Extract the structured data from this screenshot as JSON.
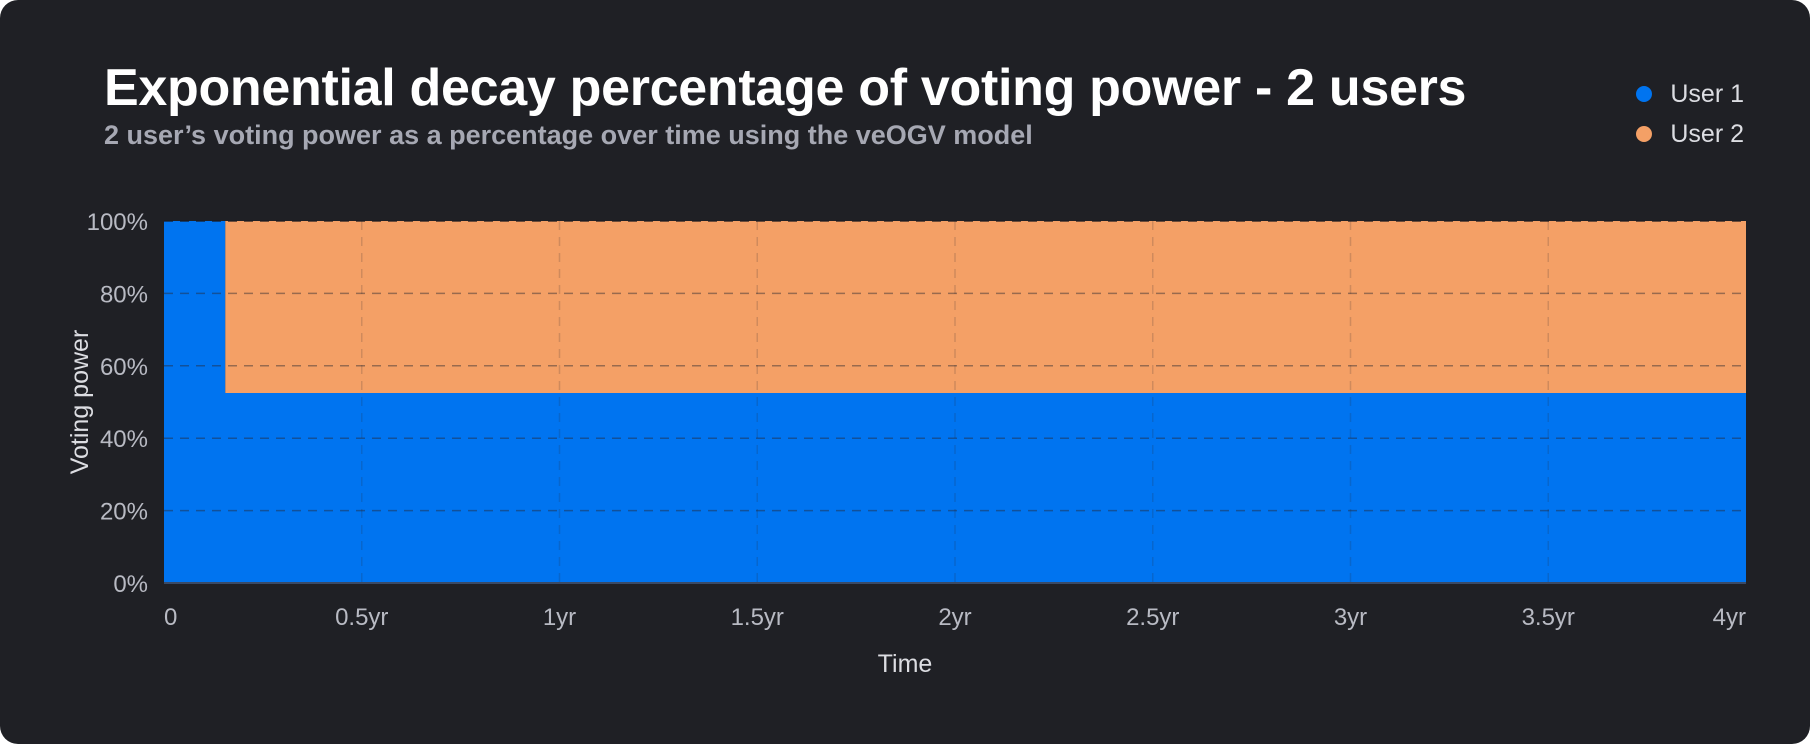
{
  "chart_data": {
    "type": "area",
    "title": "Exponential decay percentage of voting power - 2 users",
    "subtitle": "2 user’s voting power as a percentage over time using the veOGV model",
    "xlabel": "Time",
    "ylabel": "Voting power",
    "x_ticks": [
      {
        "value": 0,
        "label": "0"
      },
      {
        "value": 0.5,
        "label": "0.5yr"
      },
      {
        "value": 1,
        "label": "1yr"
      },
      {
        "value": 1.5,
        "label": "1.5yr"
      },
      {
        "value": 2,
        "label": "2yr"
      },
      {
        "value": 2.5,
        "label": "2.5yr"
      },
      {
        "value": 3,
        "label": "3yr"
      },
      {
        "value": 3.5,
        "label": "3.5yr"
      },
      {
        "value": 4,
        "label": "4yr"
      }
    ],
    "y_ticks": [
      {
        "value": 0,
        "label": "0%"
      },
      {
        "value": 20,
        "label": "20%"
      },
      {
        "value": 40,
        "label": "40%"
      },
      {
        "value": 60,
        "label": "60%"
      },
      {
        "value": 80,
        "label": "80%"
      },
      {
        "value": 100,
        "label": "100%"
      }
    ],
    "xlim": [
      0,
      4
    ],
    "ylim": [
      0,
      100
    ],
    "stacked": true,
    "grid": true,
    "legend_position": "top-right",
    "x": [
      0,
      0.155,
      0.155,
      4
    ],
    "series": [
      {
        "name": "User 1",
        "color": "#0074f0",
        "values": [
          100,
          100,
          52.5,
          52.5
        ]
      },
      {
        "name": "User 2",
        "color": "#f4a066",
        "values": [
          0,
          0,
          47.5,
          47.5
        ]
      }
    ]
  }
}
